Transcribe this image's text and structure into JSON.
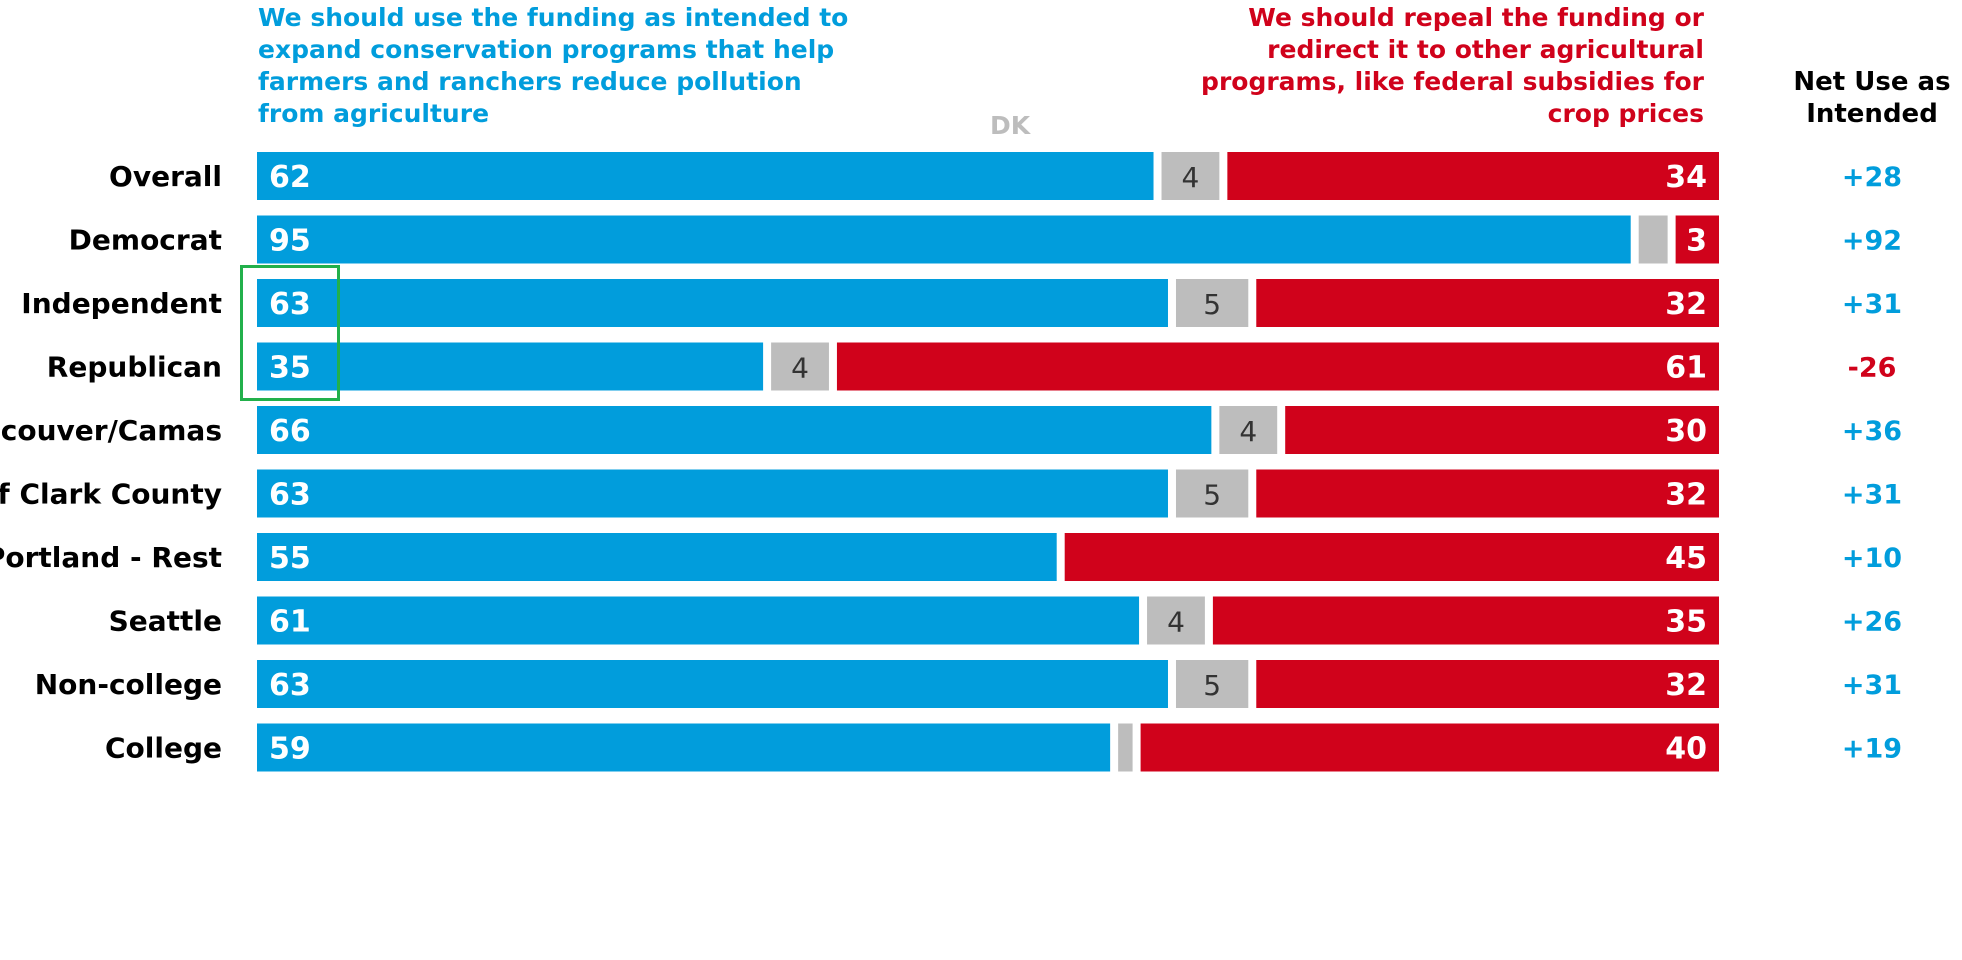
{
  "header": {
    "left": "We should use the funding as intended to\nexpand conservation programs that help\nfarmers and ranchers reduce pollution\nfrom agriculture",
    "dk": "DK",
    "right": "We should repeal the funding or\nredirect it to other agricultural\nprograms, like federal subsidies for\ncrop prices",
    "net": "Net Use as\nIntended"
  },
  "colors": {
    "use": "#019DDC",
    "dk": "#BDBDBD",
    "repeal": "#D0021B",
    "highlight": "#22B04B"
  },
  "chart_data": {
    "type": "bar",
    "orientation": "horizontal-stacked",
    "series": [
      {
        "name": "We should use the funding as intended to expand conservation programs that help farmers and ranchers reduce pollution from agriculture",
        "color": "#019DDC"
      },
      {
        "name": "DK",
        "color": "#BDBDBD"
      },
      {
        "name": "We should repeal the funding or redirect it to other agricultural programs, like federal subsidies for crop prices",
        "color": "#D0021B"
      }
    ],
    "xlim": [
      0,
      100
    ],
    "groups": [
      {
        "rows": [
          {
            "label": "Overall",
            "use": 62,
            "dk": 4,
            "repeal": 34,
            "net": "+28"
          }
        ]
      },
      {
        "rows": [
          {
            "label": "Democrat",
            "use": 95,
            "dk": 2,
            "repeal": 3,
            "net": "+92",
            "highlight": true
          },
          {
            "label": "Independent",
            "use": 63,
            "dk": 5,
            "repeal": 32,
            "net": "+31",
            "highlight": true
          },
          {
            "label": "Republican",
            "use": 35,
            "dk": 4,
            "repeal": 61,
            "net": "-26"
          }
        ]
      },
      {
        "rows": [
          {
            "label": "Vancouver/Camas",
            "use": 66,
            "dk": 4,
            "repeal": 30,
            "net": "+36"
          },
          {
            "label": "Rest of Clark County",
            "use": 63,
            "dk": 5,
            "repeal": 32,
            "net": "+31"
          },
          {
            "label": "Portland - Rest",
            "use": 55,
            "dk": 0,
            "repeal": 45,
            "net": "+10"
          },
          {
            "label": "Seattle",
            "use": 61,
            "dk": 4,
            "repeal": 35,
            "net": "+26"
          }
        ]
      },
      {
        "rows": [
          {
            "label": "Non-college",
            "use": 63,
            "dk": 5,
            "repeal": 32,
            "net": "+31"
          },
          {
            "label": "College",
            "use": 59,
            "dk": 1,
            "repeal": 40,
            "net": "+19"
          }
        ]
      }
    ]
  }
}
